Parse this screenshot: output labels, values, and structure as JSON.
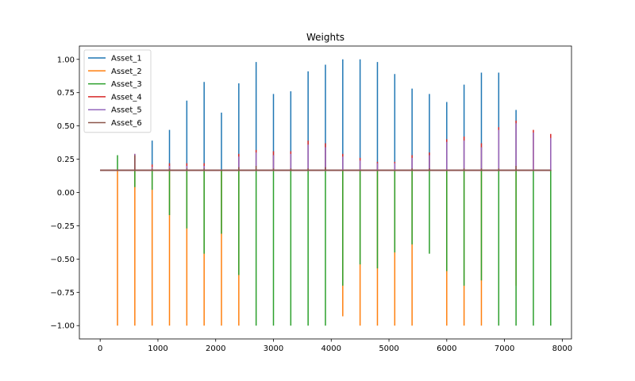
{
  "chart_data": {
    "type": "line",
    "title": "Weights",
    "xlabel": "",
    "ylabel": "",
    "xlim": [
      -360,
      8160
    ],
    "ylim": [
      -1.1,
      1.1
    ],
    "xticks": [
      0,
      1000,
      2000,
      3000,
      4000,
      5000,
      6000,
      7000,
      8000
    ],
    "xtick_labels": [
      "0",
      "1000",
      "2000",
      "3000",
      "4000",
      "5000",
      "6000",
      "7000",
      "8000"
    ],
    "yticks": [
      -1.0,
      -0.75,
      -0.5,
      -0.25,
      0.0,
      0.25,
      0.5,
      0.75,
      1.0
    ],
    "ytick_labels": [
      "−1.00",
      "−0.75",
      "−0.50",
      "−0.25",
      "0.00",
      "0.25",
      "0.50",
      "0.75",
      "1.00"
    ],
    "grid": false,
    "legend_position": "top-left",
    "x_start": 0,
    "x_end": 7800,
    "baseline": 0.1667,
    "spike_x": [
      300,
      600,
      900,
      1200,
      1500,
      1800,
      2100,
      2400,
      2700,
      3000,
      3300,
      3600,
      3900,
      4200,
      4500,
      4800,
      5100,
      5400,
      5700,
      6000,
      6300,
      6600,
      6900,
      7200,
      7500,
      7800
    ],
    "series": [
      {
        "name": "Asset_1",
        "color": "#1f77b4",
        "values": [
          0.17,
          0.17,
          0.39,
          0.47,
          0.69,
          0.83,
          0.6,
          0.82,
          0.98,
          0.74,
          0.76,
          0.91,
          0.96,
          1.0,
          1.0,
          0.98,
          0.89,
          0.78,
          0.74,
          0.68,
          0.81,
          0.9,
          0.9,
          0.62,
          0.17,
          0.17
        ]
      },
      {
        "name": "Asset_2",
        "color": "#ff7f0e",
        "values": [
          -1.0,
          -1.0,
          -1.0,
          -1.0,
          -1.0,
          -1.0,
          -1.0,
          -1.0,
          0.17,
          0.17,
          0.17,
          0.17,
          0.17,
          -0.93,
          -1.0,
          -1.0,
          -1.0,
          -1.0,
          0.17,
          -1.0,
          -1.0,
          -1.0,
          0.17,
          -0.7,
          0.17,
          0.17
        ]
      },
      {
        "name": "Asset_3",
        "color": "#2ca02c",
        "values": [
          0.28,
          0.04,
          0.02,
          -0.17,
          -0.27,
          -0.46,
          -0.31,
          -0.62,
          -1.0,
          -1.0,
          -1.0,
          -1.0,
          -1.0,
          -0.7,
          -0.54,
          -0.57,
          -0.45,
          -0.39,
          -0.46,
          -0.59,
          -0.7,
          -0.66,
          -1.0,
          -1.0,
          -1.0,
          -1.0
        ]
      },
      {
        "name": "Asset_4",
        "color": "#d62728",
        "values": [
          0.17,
          0.29,
          0.21,
          0.22,
          0.22,
          0.22,
          0.17,
          0.29,
          0.32,
          0.31,
          0.31,
          0.39,
          0.37,
          0.29,
          0.26,
          0.23,
          0.23,
          0.28,
          0.3,
          0.4,
          0.42,
          0.37,
          0.49,
          0.54,
          0.47,
          0.44
        ]
      },
      {
        "name": "Asset_5",
        "color": "#9467bd",
        "values": [
          0.17,
          0.29,
          0.19,
          0.2,
          0.2,
          0.2,
          0.17,
          0.27,
          0.3,
          0.28,
          0.29,
          0.36,
          0.34,
          0.27,
          0.24,
          0.22,
          0.22,
          0.26,
          0.28,
          0.38,
          0.39,
          0.34,
          0.47,
          0.52,
          0.45,
          0.41
        ]
      },
      {
        "name": "Asset_6",
        "color": "#8c564b",
        "values": [
          0.17,
          0.28,
          0.18,
          0.18,
          0.18,
          0.18,
          0.17,
          0.19,
          0.2,
          0.18,
          0.18,
          0.18,
          0.19,
          0.17,
          0.17,
          0.17,
          0.17,
          0.18,
          0.18,
          0.17,
          0.18,
          0.18,
          0.18,
          0.2,
          0.17,
          0.17
        ]
      }
    ]
  }
}
